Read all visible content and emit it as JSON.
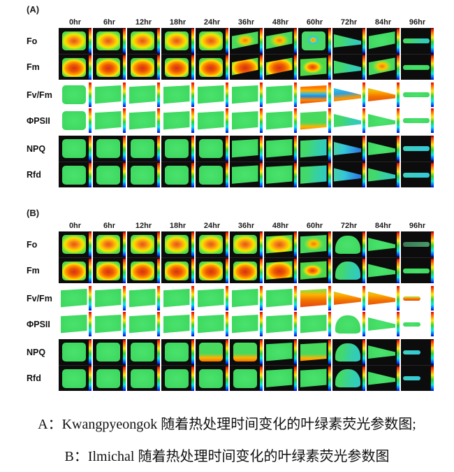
{
  "caption": {
    "line_a": "A：Kwangpyeongok 随着热处理时间变化的叶绿素荧光参数图;",
    "line_b": "B：Ilmichal 随着热处理时间变化的叶绿素荧光参数图"
  },
  "colors": {
    "colorbar_stops": [
      "#e00000",
      "#ff6a00",
      "#ffe800",
      "#2ed02e",
      "#00e8e8",
      "#0048ff",
      "#0000c8"
    ],
    "block_background": "#0c0c0c",
    "page_background": "#ffffff"
  },
  "chart_data": {
    "type": "heatmap",
    "description": "Grid of false-color chlorophyll fluorescence images of maize leaves during heat treatment. Two panels (A: Kwangpyeongok, B: Ilmichal), six parameters per panel, eleven time points per row. Each cell shows a leaf image with a vertical rainbow color scale (red = high, blue = low) at its right edge. Fo/Fm and NPQ/Rfd rows are on black blocks; Fv/Fm and ΦPSII rows are on white.",
    "time_points": [
      "0hr",
      "6hr",
      "12hr",
      "18hr",
      "24hr",
      "36hr",
      "48hr",
      "60hr",
      "72hr",
      "84hr",
      "96hr"
    ],
    "parameters": [
      "Fo",
      "Fm",
      "Fv/Fm",
      "ΦPSII",
      "NPQ",
      "Rfd"
    ],
    "legend": "cell tokens: s = leaf shape (full, taper, tilt, dome, wedge, thin, tiny), p = dominant false-color palette",
    "panels": [
      {
        "label": "(A)",
        "cultivar": "Kwangpyeongok",
        "rows": [
          {
            "label": "Fo",
            "bg": "black",
            "cells": [
              {
                "s": "full",
                "p": "hot"
              },
              {
                "s": "full",
                "p": "hot"
              },
              {
                "s": "full",
                "p": "hot"
              },
              {
                "s": "full",
                "p": "hot"
              },
              {
                "s": "full",
                "p": "hot"
              },
              {
                "s": "tilt",
                "p": "greenHot"
              },
              {
                "s": "tilt",
                "p": "greenHot"
              },
              {
                "s": "full",
                "p": "cyanHot"
              },
              {
                "s": "wedge",
                "p": "greenCyan"
              },
              {
                "s": "tilt",
                "p": "green"
              },
              {
                "s": "thin",
                "p": "greenCyan"
              }
            ]
          },
          {
            "label": "Fm",
            "bg": "black",
            "cells": [
              {
                "s": "full",
                "p": "red"
              },
              {
                "s": "full",
                "p": "red"
              },
              {
                "s": "full",
                "p": "red"
              },
              {
                "s": "full",
                "p": "red"
              },
              {
                "s": "full",
                "p": "red"
              },
              {
                "s": "tilt",
                "p": "red"
              },
              {
                "s": "tilt",
                "p": "red"
              },
              {
                "s": "taper",
                "p": "greenRed"
              },
              {
                "s": "wedge",
                "p": "greenCyan"
              },
              {
                "s": "tilt",
                "p": "greenHot"
              },
              {
                "s": "thin",
                "p": "green"
              }
            ]
          },
          {
            "label": "Fv/Fm",
            "bg": "white",
            "cells": [
              {
                "s": "full",
                "p": "green"
              },
              {
                "s": "taper",
                "p": "green"
              },
              {
                "s": "taper",
                "p": "green"
              },
              {
                "s": "taper",
                "p": "green"
              },
              {
                "s": "taper",
                "p": "green"
              },
              {
                "s": "taper",
                "p": "green"
              },
              {
                "s": "taper",
                "p": "green"
              },
              {
                "s": "taper",
                "p": "orangeCyan"
              },
              {
                "s": "wedge",
                "p": "cyanOrange"
              },
              {
                "s": "wedge",
                "p": "orange"
              },
              {
                "s": "thin",
                "p": "green"
              }
            ]
          },
          {
            "label": "ΦPSII",
            "bg": "white",
            "cells": [
              {
                "s": "full",
                "p": "green"
              },
              {
                "s": "taper",
                "p": "green"
              },
              {
                "s": "taper",
                "p": "green"
              },
              {
                "s": "taper",
                "p": "green"
              },
              {
                "s": "taper",
                "p": "green"
              },
              {
                "s": "taper",
                "p": "green"
              },
              {
                "s": "taper",
                "p": "green"
              },
              {
                "s": "taper",
                "p": "greenOrange"
              },
              {
                "s": "wedge",
                "p": "greenCyan"
              },
              {
                "s": "wedge",
                "p": "green"
              },
              {
                "s": "thin",
                "p": "green"
              }
            ]
          },
          {
            "label": "NPQ",
            "bg": "black",
            "cells": [
              {
                "s": "full",
                "p": "green"
              },
              {
                "s": "full",
                "p": "green"
              },
              {
                "s": "full",
                "p": "green"
              },
              {
                "s": "full",
                "p": "green"
              },
              {
                "s": "full",
                "p": "green"
              },
              {
                "s": "taper",
                "p": "green"
              },
              {
                "s": "taper",
                "p": "green"
              },
              {
                "s": "taper",
                "p": "greenCyan"
              },
              {
                "s": "wedge",
                "p": "cyanBlue"
              },
              {
                "s": "wedge",
                "p": "green"
              },
              {
                "s": "thin",
                "p": "cyan"
              }
            ]
          },
          {
            "label": "Rfd",
            "bg": "black",
            "cells": [
              {
                "s": "full",
                "p": "green"
              },
              {
                "s": "full",
                "p": "green"
              },
              {
                "s": "full",
                "p": "green"
              },
              {
                "s": "full",
                "p": "green"
              },
              {
                "s": "full",
                "p": "green"
              },
              {
                "s": "taper",
                "p": "green"
              },
              {
                "s": "taper",
                "p": "green"
              },
              {
                "s": "taper",
                "p": "greenCyan"
              },
              {
                "s": "wedge",
                "p": "cyanBlue"
              },
              {
                "s": "wedge",
                "p": "greenCyan"
              },
              {
                "s": "thin",
                "p": "cyan"
              }
            ]
          }
        ]
      },
      {
        "label": "(B)",
        "cultivar": "Ilmichal",
        "rows": [
          {
            "label": "Fo",
            "bg": "black",
            "cells": [
              {
                "s": "full",
                "p": "hot"
              },
              {
                "s": "full",
                "p": "hot"
              },
              {
                "s": "full",
                "p": "hot"
              },
              {
                "s": "full",
                "p": "hot"
              },
              {
                "s": "full",
                "p": "hot"
              },
              {
                "s": "full",
                "p": "hot"
              },
              {
                "s": "taper",
                "p": "hot"
              },
              {
                "s": "taper",
                "p": "greenHot"
              },
              {
                "s": "dome",
                "p": "green"
              },
              {
                "s": "wedge",
                "p": "green"
              },
              {
                "s": "thin",
                "p": "dim"
              }
            ]
          },
          {
            "label": "Fm",
            "bg": "black",
            "cells": [
              {
                "s": "full",
                "p": "red"
              },
              {
                "s": "full",
                "p": "red"
              },
              {
                "s": "full",
                "p": "red"
              },
              {
                "s": "full",
                "p": "red"
              },
              {
                "s": "full",
                "p": "red"
              },
              {
                "s": "full",
                "p": "red"
              },
              {
                "s": "taper",
                "p": "red"
              },
              {
                "s": "taper",
                "p": "greenRed"
              },
              {
                "s": "dome",
                "p": "greenCyan"
              },
              {
                "s": "wedge",
                "p": "green"
              },
              {
                "s": "thin",
                "p": "green"
              }
            ]
          },
          {
            "label": "Fv/Fm",
            "bg": "white",
            "cells": [
              {
                "s": "taper",
                "p": "green"
              },
              {
                "s": "taper",
                "p": "green"
              },
              {
                "s": "taper",
                "p": "green"
              },
              {
                "s": "taper",
                "p": "green"
              },
              {
                "s": "taper",
                "p": "green"
              },
              {
                "s": "taper",
                "p": "green"
              },
              {
                "s": "taper",
                "p": "green"
              },
              {
                "s": "taper",
                "p": "orange"
              },
              {
                "s": "wedge",
                "p": "orange"
              },
              {
                "s": "wedge",
                "p": "orange"
              },
              {
                "s": "tiny",
                "p": "orange"
              }
            ]
          },
          {
            "label": "ΦPSII",
            "bg": "white",
            "cells": [
              {
                "s": "taper",
                "p": "green"
              },
              {
                "s": "taper",
                "p": "green"
              },
              {
                "s": "taper",
                "p": "green"
              },
              {
                "s": "taper",
                "p": "green"
              },
              {
                "s": "taper",
                "p": "green"
              },
              {
                "s": "taper",
                "p": "green"
              },
              {
                "s": "taper",
                "p": "green"
              },
              {
                "s": "taper",
                "p": "green"
              },
              {
                "s": "dome",
                "p": "green"
              },
              {
                "s": "wedge",
                "p": "green"
              },
              {
                "s": "tiny",
                "p": "green"
              }
            ]
          },
          {
            "label": "NPQ",
            "bg": "black",
            "cells": [
              {
                "s": "full",
                "p": "green"
              },
              {
                "s": "full",
                "p": "green"
              },
              {
                "s": "full",
                "p": "green"
              },
              {
                "s": "full",
                "p": "green"
              },
              {
                "s": "full",
                "p": "greenOrange"
              },
              {
                "s": "full",
                "p": "greenOrange"
              },
              {
                "s": "taper",
                "p": "green"
              },
              {
                "s": "taper",
                "p": "greenOrange"
              },
              {
                "s": "dome",
                "p": "greenCyan"
              },
              {
                "s": "wedge",
                "p": "green"
              },
              {
                "s": "tiny",
                "p": "cyan"
              }
            ]
          },
          {
            "label": "Rfd",
            "bg": "black",
            "cells": [
              {
                "s": "full",
                "p": "green"
              },
              {
                "s": "full",
                "p": "green"
              },
              {
                "s": "full",
                "p": "green"
              },
              {
                "s": "full",
                "p": "green"
              },
              {
                "s": "full",
                "p": "green"
              },
              {
                "s": "full",
                "p": "green"
              },
              {
                "s": "taper",
                "p": "green"
              },
              {
                "s": "taper",
                "p": "green"
              },
              {
                "s": "dome",
                "p": "greenCyan"
              },
              {
                "s": "wedge",
                "p": "green"
              },
              {
                "s": "tiny",
                "p": "cyan"
              }
            ]
          }
        ]
      }
    ]
  }
}
